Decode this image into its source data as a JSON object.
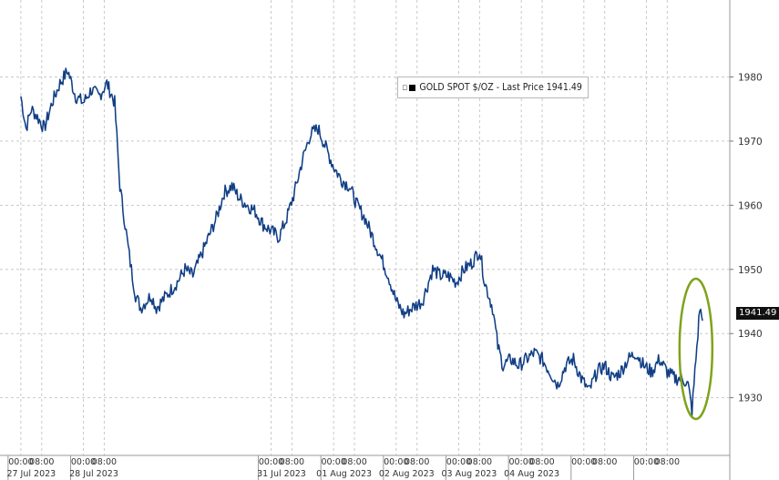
{
  "legend": {
    "label": "GOLD SPOT $/OZ - Last Price 1941.49"
  },
  "last_price_tag": "1941.49",
  "chart_data": {
    "type": "line",
    "series": [
      {
        "name": "GOLD SPOT $/OZ",
        "color": "#1a4fa0",
        "points": [
          [
            0,
            1977
          ],
          [
            2,
            1972
          ],
          [
            4,
            1975
          ],
          [
            6,
            1974
          ],
          [
            9,
            1972
          ],
          [
            12,
            1976
          ],
          [
            15,
            1979
          ],
          [
            18,
            1981
          ],
          [
            21,
            1977
          ],
          [
            24,
            1976
          ],
          [
            27,
            1978
          ],
          [
            30,
            1977
          ],
          [
            33,
            1979
          ],
          [
            36,
            1976
          ],
          [
            38,
            1963
          ],
          [
            40,
            1957
          ],
          [
            42,
            1951
          ],
          [
            44,
            1946
          ],
          [
            46,
            1944
          ],
          [
            48,
            1945
          ],
          [
            50,
            1946
          ],
          [
            52,
            1944
          ],
          [
            56,
            1946
          ],
          [
            60,
            1948
          ],
          [
            63,
            1950
          ],
          [
            66,
            1949
          ],
          [
            69,
            1952
          ],
          [
            72,
            1955
          ],
          [
            75,
            1958
          ],
          [
            78,
            1962
          ],
          [
            81,
            1963
          ],
          [
            84,
            1961
          ],
          [
            87,
            1960
          ],
          [
            90,
            1959
          ],
          [
            93,
            1957
          ],
          [
            96,
            1956
          ],
          [
            99,
            1955
          ],
          [
            102,
            1958
          ],
          [
            105,
            1962
          ],
          [
            108,
            1967
          ],
          [
            111,
            1971
          ],
          [
            114,
            1972
          ],
          [
            117,
            1969
          ],
          [
            120,
            1966
          ],
          [
            123,
            1964
          ],
          [
            126,
            1963
          ],
          [
            129,
            1960
          ],
          [
            132,
            1958
          ],
          [
            135,
            1955
          ],
          [
            138,
            1952
          ],
          [
            141,
            1949
          ],
          [
            144,
            1945
          ],
          [
            147,
            1943
          ],
          [
            150,
            1944
          ],
          [
            154,
            1945
          ],
          [
            158,
            1950
          ],
          [
            161,
            1949
          ],
          [
            164,
            1949
          ],
          [
            167,
            1948
          ],
          [
            170,
            1950
          ],
          [
            173,
            1951
          ],
          [
            176,
            1953
          ],
          [
            178,
            1948
          ],
          [
            181,
            1944
          ],
          [
            183,
            1938
          ],
          [
            185,
            1935
          ],
          [
            188,
            1936
          ],
          [
            191,
            1935
          ],
          [
            194,
            1936
          ],
          [
            197,
            1937
          ],
          [
            200,
            1936
          ],
          [
            203,
            1934
          ],
          [
            206,
            1932
          ],
          [
            209,
            1935
          ],
          [
            212,
            1936
          ],
          [
            215,
            1933
          ],
          [
            218,
            1931
          ],
          [
            221,
            1934
          ],
          [
            224,
            1935
          ],
          [
            227,
            1933
          ],
          [
            230,
            1934
          ],
          [
            233,
            1936
          ],
          [
            236,
            1937
          ],
          [
            239,
            1935
          ],
          [
            242,
            1934
          ],
          [
            245,
            1936
          ],
          [
            248,
            1934
          ],
          [
            251,
            1933
          ],
          [
            254,
            1933
          ],
          [
            256,
            1932
          ],
          [
            257.5,
            1928
          ],
          [
            259,
            1936
          ],
          [
            260.5,
            1944
          ],
          [
            261.5,
            1942
          ]
        ]
      }
    ],
    "x_axis": {
      "unit": "hours from 27 Jul 2023 00:00",
      "range": [
        -8,
        272
      ],
      "tick_labels": [
        {
          "x": 0,
          "label": "00:00"
        },
        {
          "x": 8,
          "label": "08:00"
        },
        {
          "x": 24,
          "label": "00:00"
        },
        {
          "x": 32,
          "label": "08:00"
        },
        {
          "x": 96,
          "label": "00:00"
        },
        {
          "x": 104,
          "label": "08:00"
        },
        {
          "x": 120,
          "label": "00:00"
        },
        {
          "x": 128,
          "label": "08:00"
        },
        {
          "x": 144,
          "label": "00:00"
        },
        {
          "x": 152,
          "label": "08:00"
        },
        {
          "x": 168,
          "label": "00:00"
        },
        {
          "x": 176,
          "label": "08:00"
        },
        {
          "x": 192,
          "label": "00:00"
        },
        {
          "x": 200,
          "label": "08:00"
        },
        {
          "x": 216,
          "label": "00:00"
        },
        {
          "x": 224,
          "label": "08:00"
        },
        {
          "x": 240,
          "label": "00:00"
        },
        {
          "x": 248,
          "label": "08:00"
        }
      ],
      "date_labels": [
        {
          "x": 4,
          "label": "27 Jul 2023"
        },
        {
          "x": 28,
          "label": "28 Jul 2023"
        },
        {
          "x": 100,
          "label": "31 Jul 2023"
        },
        {
          "x": 124,
          "label": "01 Aug 2023"
        },
        {
          "x": 148,
          "label": "02 Aug 2023"
        },
        {
          "x": 172,
          "label": "03 Aug 2023"
        },
        {
          "x": 196,
          "label": "04 Aug 2023"
        }
      ]
    },
    "y_axis": {
      "range": [
        1921,
        1992
      ],
      "ticks": [
        1930,
        1940,
        1950,
        1960,
        1970,
        1980
      ]
    },
    "grid": true,
    "legend_position": "top-center",
    "annotation": {
      "type": "ellipse",
      "color": "#7ea31a",
      "around_x": 259
    }
  }
}
